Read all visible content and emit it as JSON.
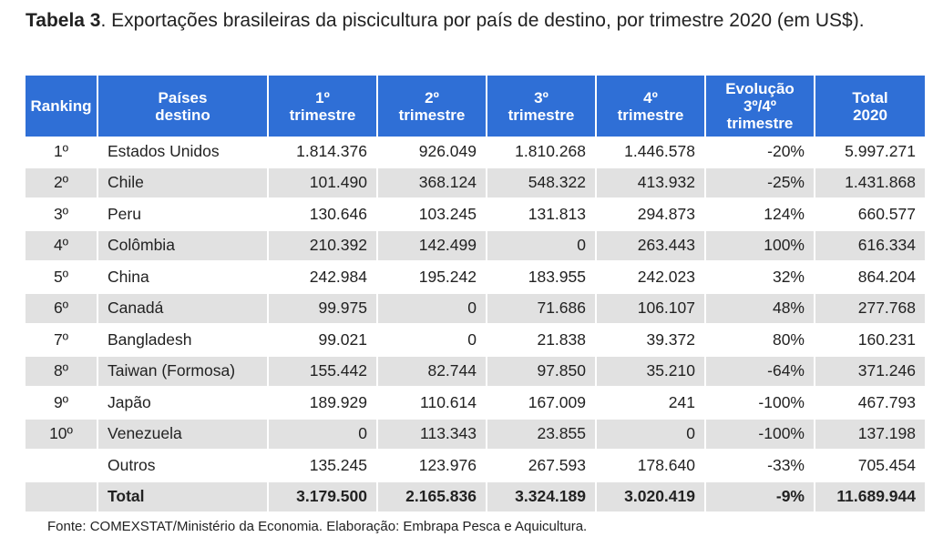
{
  "caption": {
    "label": "Tabela 3",
    "text": ". Exportações brasileiras da piscicultura por país de destino, por trimestre 2020 (em US$)."
  },
  "table": {
    "headers": {
      "ranking": "Ranking",
      "country_l1": "Países",
      "country_l2": "destino",
      "q1_l1": "1º",
      "q1_l2": "trimestre",
      "q2_l1": "2º",
      "q2_l2": "trimestre",
      "q3_l1": "3º",
      "q3_l2": "trimestre",
      "q4_l1": "4º",
      "q4_l2": "trimestre",
      "evo_l1": "Evolução",
      "evo_l2": "3º/4º",
      "evo_l3": "trimestre",
      "total_l1": "Total",
      "total_l2": "2020"
    },
    "rows": [
      {
        "rank": "1º",
        "country": "Estados Unidos",
        "q1": "1.814.376",
        "q2": "926.049",
        "q3": "1.810.268",
        "q4": "1.446.578",
        "evo": "-20%",
        "total": "5.997.271"
      },
      {
        "rank": "2º",
        "country": "Chile",
        "q1": "101.490",
        "q2": "368.124",
        "q3": "548.322",
        "q4": "413.932",
        "evo": "-25%",
        "total": "1.431.868"
      },
      {
        "rank": "3º",
        "country": "Peru",
        "q1": "130.646",
        "q2": "103.245",
        "q3": "131.813",
        "q4": "294.873",
        "evo": "124%",
        "total": "660.577"
      },
      {
        "rank": "4º",
        "country": "Colômbia",
        "q1": "210.392",
        "q2": "142.499",
        "q3": "0",
        "q4": "263.443",
        "evo": "100%",
        "total": "616.334"
      },
      {
        "rank": "5º",
        "country": "China",
        "q1": "242.984",
        "q2": "195.242",
        "q3": "183.955",
        "q4": "242.023",
        "evo": "32%",
        "total": "864.204"
      },
      {
        "rank": "6º",
        "country": "Canadá",
        "q1": "99.975",
        "q2": "0",
        "q3": "71.686",
        "q4": "106.107",
        "evo": "48%",
        "total": "277.768"
      },
      {
        "rank": "7º",
        "country": "Bangladesh",
        "q1": "99.021",
        "q2": "0",
        "q3": "21.838",
        "q4": "39.372",
        "evo": "80%",
        "total": "160.231"
      },
      {
        "rank": "8º",
        "country": "Taiwan (Formosa)",
        "q1": "155.442",
        "q2": "82.744",
        "q3": "97.850",
        "q4": "35.210",
        "evo": "-64%",
        "total": "371.246"
      },
      {
        "rank": "9º",
        "country": "Japão",
        "q1": "189.929",
        "q2": "110.614",
        "q3": "167.009",
        "q4": "241",
        "evo": "-100%",
        "total": "467.793"
      },
      {
        "rank": "10º",
        "country": "Venezuela",
        "q1": "0",
        "q2": "113.343",
        "q3": "23.855",
        "q4": "0",
        "evo": "-100%",
        "total": "137.198"
      },
      {
        "rank": "",
        "country": "Outros",
        "q1": "135.245",
        "q2": "123.976",
        "q3": "267.593",
        "q4": "178.640",
        "evo": "-33%",
        "total": "705.454"
      }
    ],
    "total_row": {
      "rank": "",
      "country": "Total",
      "q1": "3.179.500",
      "q2": "2.165.836",
      "q3": "3.324.189",
      "q4": "3.020.419",
      "evo": "-9%",
      "total": "11.689.944"
    }
  },
  "source": "Fonte: COMEXSTAT/Ministério da Economia. Elaboração: Embrapa Pesca e Aquicultura."
}
